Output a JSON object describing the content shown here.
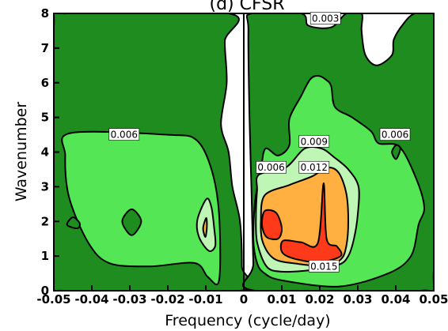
{
  "chart_data": {
    "type": "contour",
    "title": "(d) CFSR",
    "xlabel": "Frequency (cycle/day)",
    "ylabel": "Wavenumber",
    "xlim": [
      -0.05,
      0.05
    ],
    "ylim": [
      0,
      8
    ],
    "xticks": [
      {
        "v": -0.05,
        "label": "-0.05"
      },
      {
        "v": -0.04,
        "label": "-0.04"
      },
      {
        "v": -0.03,
        "label": "-0.03"
      },
      {
        "v": -0.02,
        "label": "-0.02"
      },
      {
        "v": -0.01,
        "label": "-0.01"
      },
      {
        "v": 0,
        "label": "0"
      },
      {
        "v": 0.01,
        "label": "0.01"
      },
      {
        "v": 0.02,
        "label": "0.02"
      },
      {
        "v": 0.03,
        "label": "0.03"
      },
      {
        "v": 0.04,
        "label": "0.04"
      },
      {
        "v": 0.05,
        "label": "0.05"
      }
    ],
    "yticks": [
      {
        "v": 0,
        "label": "0"
      },
      {
        "v": 1,
        "label": "1"
      },
      {
        "v": 2,
        "label": "2"
      },
      {
        "v": 3,
        "label": "3"
      },
      {
        "v": 4,
        "label": "4"
      },
      {
        "v": 5,
        "label": "5"
      },
      {
        "v": 6,
        "label": "6"
      },
      {
        "v": 7,
        "label": "7"
      },
      {
        "v": 8,
        "label": "8"
      }
    ],
    "contour_levels": [
      0.003,
      0.006,
      0.009,
      0.012,
      0.015
    ],
    "fill_colors": {
      "below_0.003": "#ffffff",
      "0.003_0.006": "#1e8c1e",
      "0.006_0.009": "#55e655",
      "0.009_0.012": "#bff5b5",
      "0.012_0.015": "#ffb040",
      "above_0.015": "#ff3a1a"
    },
    "contour_labels": [
      {
        "text": "0.003",
        "x": 0.0215,
        "y": 7.85
      },
      {
        "text": "0.006",
        "x": -0.0315,
        "y": 4.5
      },
      {
        "text": "0.006",
        "x": 0.0072,
        "y": 3.55
      },
      {
        "text": "0.009",
        "x": 0.0185,
        "y": 4.3
      },
      {
        "text": "0.012",
        "x": 0.0185,
        "y": 3.55
      },
      {
        "text": "0.006",
        "x": 0.0398,
        "y": 4.5
      },
      {
        "text": "0.015",
        "x": 0.0211,
        "y": 0.7
      }
    ],
    "regions": [
      {
        "level": "0.003_0.006",
        "points": [
          [
            -0.0465,
            8
          ],
          [
            -0.004,
            8
          ],
          [
            -0.005,
            7.2
          ],
          [
            -0.0045,
            6.0
          ],
          [
            -0.006,
            4.8
          ],
          [
            -0.004,
            4.0
          ],
          [
            -0.003,
            3.0
          ],
          [
            -0.001,
            2.0
          ],
          [
            -0.0005,
            0.7
          ],
          [
            -0.001,
            0
          ],
          [
            -0.0475,
            0
          ],
          [
            -0.05,
            0.4
          ],
          [
            -0.05,
            7.6
          ]
        ]
      },
      {
        "level": "0.003_0.006",
        "points": [
          [
            0.002,
            8
          ],
          [
            0.015,
            8
          ],
          [
            0.017,
            7.65
          ],
          [
            0.023,
            7.6
          ],
          [
            0.027,
            8
          ],
          [
            0.031,
            8
          ],
          [
            0.031,
            7.5
          ],
          [
            0.032,
            6.8
          ],
          [
            0.035,
            6.5
          ],
          [
            0.039,
            6.8
          ],
          [
            0.0395,
            7.25
          ],
          [
            0.042,
            7.7
          ],
          [
            0.045,
            8
          ],
          [
            0.05,
            8
          ],
          [
            0.05,
            0.6
          ],
          [
            0.0465,
            0
          ],
          [
            0.003,
            0
          ],
          [
            0.0025,
            0.8
          ],
          [
            0.002,
            3.0
          ],
          [
            0.0015,
            5.0
          ],
          [
            0.0012,
            7.5
          ]
        ]
      },
      {
        "level": "0.006_0.009",
        "points": [
          [
            -0.0455,
            4.55
          ],
          [
            -0.02,
            4.5
          ],
          [
            -0.0125,
            4.35
          ],
          [
            -0.0085,
            3.5
          ],
          [
            -0.0065,
            2.2
          ],
          [
            -0.0065,
            0.3
          ],
          [
            -0.0095,
            0.4
          ],
          [
            -0.013,
            0.8
          ],
          [
            -0.025,
            0.7
          ],
          [
            -0.0355,
            0.8
          ],
          [
            -0.041,
            1.4
          ],
          [
            -0.046,
            2.7
          ],
          [
            -0.047,
            3.9
          ]
        ]
      },
      {
        "level": "0.006_0.009",
        "points": [
          [
            0.0057,
            4.1
          ],
          [
            0.009,
            3.9
          ],
          [
            0.012,
            4.2
          ],
          [
            0.012,
            4.95
          ],
          [
            0.015,
            5.6
          ],
          [
            0.0175,
            6.1
          ],
          [
            0.0195,
            6.2
          ],
          [
            0.0215,
            6.1
          ],
          [
            0.023,
            5.9
          ],
          [
            0.024,
            5.3
          ],
          [
            0.0285,
            5.0
          ],
          [
            0.0335,
            4.6
          ],
          [
            0.0355,
            4.25
          ],
          [
            0.041,
            4.15
          ],
          [
            0.0455,
            3.2
          ],
          [
            0.0475,
            2.4
          ],
          [
            0.046,
            1.9
          ],
          [
            0.044,
            1.0
          ],
          [
            0.038,
            0.5
          ],
          [
            0.025,
            0.12
          ],
          [
            0.01,
            0.3
          ],
          [
            0.0055,
            0.5
          ],
          [
            0.0035,
            0.8
          ],
          [
            0.0025,
            1.5
          ],
          [
            0.003,
            2.6
          ],
          [
            0.0045,
            3.5
          ]
        ]
      },
      {
        "level": "0.003_0.006",
        "points": [
          [
            -0.0295,
            2.35
          ],
          [
            -0.027,
            2.0
          ],
          [
            -0.0295,
            1.6
          ],
          [
            -0.032,
            2.0
          ]
        ]
      },
      {
        "level": "0.003_0.006",
        "points": [
          [
            0.0401,
            4.2
          ],
          [
            0.0412,
            4.1
          ],
          [
            0.0401,
            3.8
          ],
          [
            0.039,
            4.0
          ]
        ]
      },
      {
        "level": "0.003_0.006",
        "points": [
          [
            -0.045,
            2.12
          ],
          [
            -0.0432,
            1.95
          ],
          [
            -0.0438,
            1.8
          ],
          [
            -0.0465,
            1.9
          ]
        ]
      },
      {
        "level": "0.009_0.012",
        "points": [
          [
            -0.0098,
            2.65
          ],
          [
            -0.0085,
            2.4
          ],
          [
            -0.0078,
            1.8
          ],
          [
            -0.0075,
            1.3
          ],
          [
            -0.0092,
            1.15
          ],
          [
            -0.0118,
            1.55
          ],
          [
            -0.0122,
            2.05
          ]
        ]
      },
      {
        "level": "0.009_0.012",
        "points": [
          [
            0.004,
            3.35
          ],
          [
            0.011,
            3.55
          ],
          [
            0.016,
            4.1
          ],
          [
            0.0205,
            4.1
          ],
          [
            0.0238,
            3.85
          ],
          [
            0.0275,
            3.5
          ],
          [
            0.0302,
            3.0
          ],
          [
            0.03,
            2.2
          ],
          [
            0.029,
            1.5
          ],
          [
            0.0275,
            1.0
          ],
          [
            0.025,
            0.75
          ],
          [
            0.018,
            0.6
          ],
          [
            0.01,
            0.55
          ],
          [
            0.006,
            0.7
          ],
          [
            0.0035,
            1.4
          ],
          [
            0.0032,
            2.2
          ],
          [
            0.0035,
            2.9
          ]
        ]
      },
      {
        "level": "0.012_0.015",
        "points": [
          [
            0.0055,
            2.75
          ],
          [
            0.012,
            3.05
          ],
          [
            0.018,
            3.3
          ],
          [
            0.022,
            3.55
          ],
          [
            0.025,
            3.4
          ],
          [
            0.027,
            2.8
          ],
          [
            0.0275,
            2.0
          ],
          [
            0.027,
            1.3
          ],
          [
            0.0255,
            0.9
          ],
          [
            0.021,
            0.72
          ],
          [
            0.014,
            0.78
          ],
          [
            0.008,
            0.92
          ],
          [
            0.005,
            1.4
          ],
          [
            0.0045,
            2.0
          ]
        ]
      },
      {
        "level": "0.012_0.015",
        "points": [
          [
            -0.0099,
            2.1
          ],
          [
            -0.0097,
            1.85
          ],
          [
            -0.0101,
            1.55
          ],
          [
            -0.0107,
            1.8
          ]
        ]
      },
      {
        "level": "above_0.015",
        "points": [
          [
            0.0055,
            2.3
          ],
          [
            0.0085,
            2.25
          ],
          [
            0.01,
            1.8
          ],
          [
            0.009,
            1.5
          ],
          [
            0.006,
            1.55
          ],
          [
            0.0048,
            1.9
          ]
        ]
      },
      {
        "level": "above_0.015",
        "points": [
          [
            0.0105,
            1.45
          ],
          [
            0.015,
            1.4
          ],
          [
            0.0195,
            1.38
          ],
          [
            0.021,
            3.1
          ],
          [
            0.0218,
            1.5
          ],
          [
            0.0245,
            1.28
          ],
          [
            0.0255,
            1.0
          ],
          [
            0.02,
            0.82
          ],
          [
            0.015,
            0.88
          ],
          [
            0.011,
            1.02
          ],
          [
            0.0098,
            1.2
          ]
        ]
      }
    ]
  }
}
